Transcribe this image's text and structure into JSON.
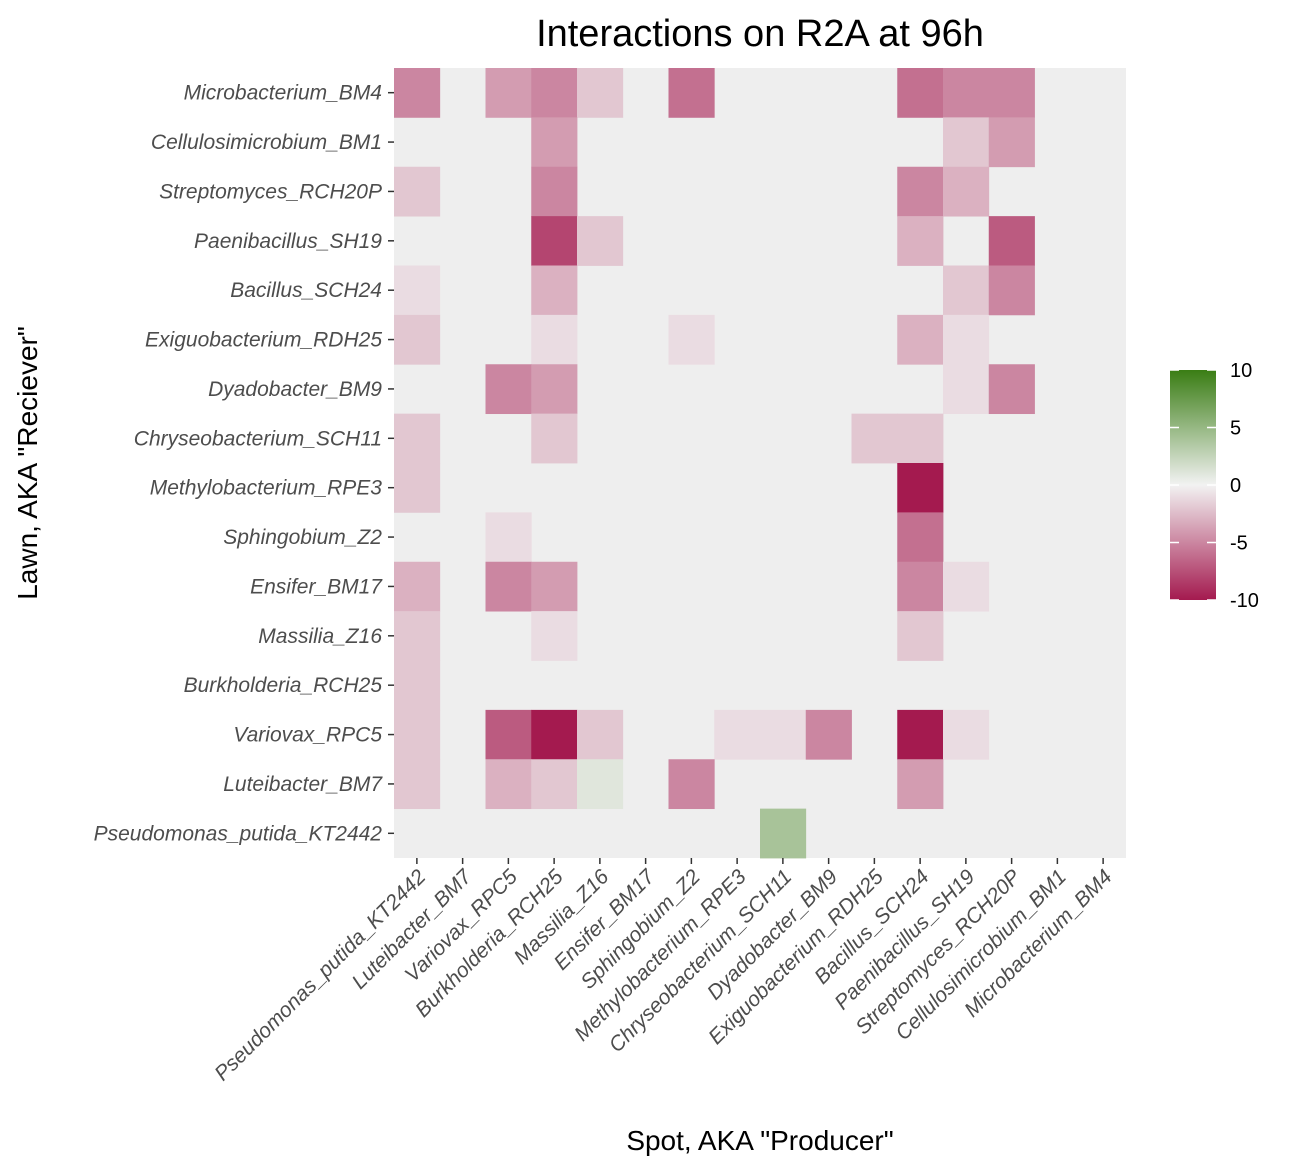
{
  "chart_data": {
    "type": "heatmap",
    "title": "Interactions on R2A at 96h",
    "xlabel": "Spot, AKA \"Producer\"",
    "ylabel": "Lawn, AKA \"Reciever\"",
    "x_categories": [
      "Pseudomonas_putida_KT2442",
      "Luteibacter_BM7",
      "Variovax_RPC5",
      "Burkholderia_RCH25",
      "Massilia_Z16",
      "Ensifer_BM17",
      "Sphingobium_Z2",
      "Methylobacterium_RPE3",
      "Chryseobacterium_SCH11",
      "Dyadobacter_BM9",
      "Exiguobacterium_RDH25",
      "Bacillus_SCH24",
      "Paenibacillus_SH19",
      "Streptomyces_RCH20P",
      "Cellulosimicrobium_BM1",
      "Microbacterium_BM4"
    ],
    "y_categories": [
      "Microbacterium_BM4",
      "Cellulosimicrobium_BM1",
      "Streptomyces_RCH20P",
      "Paenibacillus_SH19",
      "Bacillus_SCH24",
      "Exiguobacterium_RDH25",
      "Dyadobacter_BM9",
      "Chryseobacterium_SCH11",
      "Methylobacterium_RPE3",
      "Sphingobium_Z2",
      "Ensifer_BM17",
      "Massilia_Z16",
      "Burkholderia_RCH25",
      "Variovax_RPC5",
      "Luteibacter_BM7",
      "Pseudomonas_putida_KT2442"
    ],
    "values": [
      [
        -5,
        0,
        -4,
        -5,
        -2,
        0,
        -6,
        0,
        0,
        0,
        0,
        -6,
        -5,
        -5,
        0,
        0
      ],
      [
        0,
        0,
        0,
        -4,
        0,
        0,
        0,
        0,
        0,
        0,
        0,
        0,
        -2,
        -4,
        0,
        0
      ],
      [
        -2,
        0,
        0,
        -5,
        0,
        0,
        0,
        0,
        0,
        0,
        0,
        -5,
        -3,
        0,
        0,
        0
      ],
      [
        0,
        0,
        0,
        -8,
        -2,
        0,
        0,
        0,
        0,
        0,
        0,
        -3,
        0,
        -7,
        0,
        0
      ],
      [
        -1,
        0,
        0,
        -3,
        0,
        0,
        0,
        0,
        0,
        0,
        0,
        0,
        -2,
        -5,
        0,
        0
      ],
      [
        -2,
        0,
        0,
        -1,
        0,
        0,
        -1,
        0,
        0,
        0,
        0,
        -3,
        -1,
        0,
        0,
        0
      ],
      [
        0,
        0,
        -5,
        -4,
        0,
        0,
        0,
        0,
        0,
        0,
        0,
        0,
        -1,
        -5,
        0,
        0
      ],
      [
        -2,
        0,
        0,
        -2,
        0,
        0,
        0,
        0,
        0,
        0,
        -2,
        -2,
        0,
        0,
        0,
        0
      ],
      [
        -2,
        0,
        0,
        0,
        0,
        0,
        0,
        0,
        0,
        0,
        0,
        -10,
        0,
        0,
        0,
        0
      ],
      [
        0,
        0,
        -1,
        0,
        0,
        0,
        0,
        0,
        0,
        0,
        0,
        -6,
        0,
        0,
        0,
        0
      ],
      [
        -3,
        0,
        -5,
        -4,
        0,
        0,
        0,
        0,
        0,
        0,
        0,
        -5,
        -1,
        0,
        0,
        0
      ],
      [
        -2,
        0,
        0,
        -1,
        0,
        0,
        0,
        0,
        0,
        0,
        0,
        -2,
        0,
        0,
        0,
        0
      ],
      [
        -2,
        0,
        0,
        0,
        0,
        0,
        0,
        0,
        0,
        0,
        0,
        0,
        0,
        0,
        0,
        0
      ],
      [
        -2,
        0,
        -7,
        -10,
        -2,
        0,
        0,
        -1,
        -1,
        -5,
        0,
        -10,
        -1,
        0,
        0,
        0
      ],
      [
        -2,
        0,
        -3,
        -2,
        1,
        0,
        -5,
        0,
        0,
        0,
        0,
        -4,
        0,
        0,
        0,
        0
      ],
      [
        0,
        0,
        0,
        0,
        0,
        0,
        0,
        0,
        4,
        0,
        0,
        0,
        0,
        0,
        0,
        0
      ]
    ],
    "missing_shown_as": 0,
    "color_scale": {
      "type": "diverging",
      "limits": [
        -10,
        10
      ],
      "low": "#a41a4f",
      "mid": "#f2f2f2",
      "high": "#3a7d14",
      "panel_background": "#eeeeee",
      "breaks": [
        10,
        5,
        0,
        -5,
        -10
      ],
      "break_labels": [
        "10",
        "5",
        "0",
        "-5",
        "-10"
      ]
    },
    "legend_position": "right",
    "grid": false
  }
}
